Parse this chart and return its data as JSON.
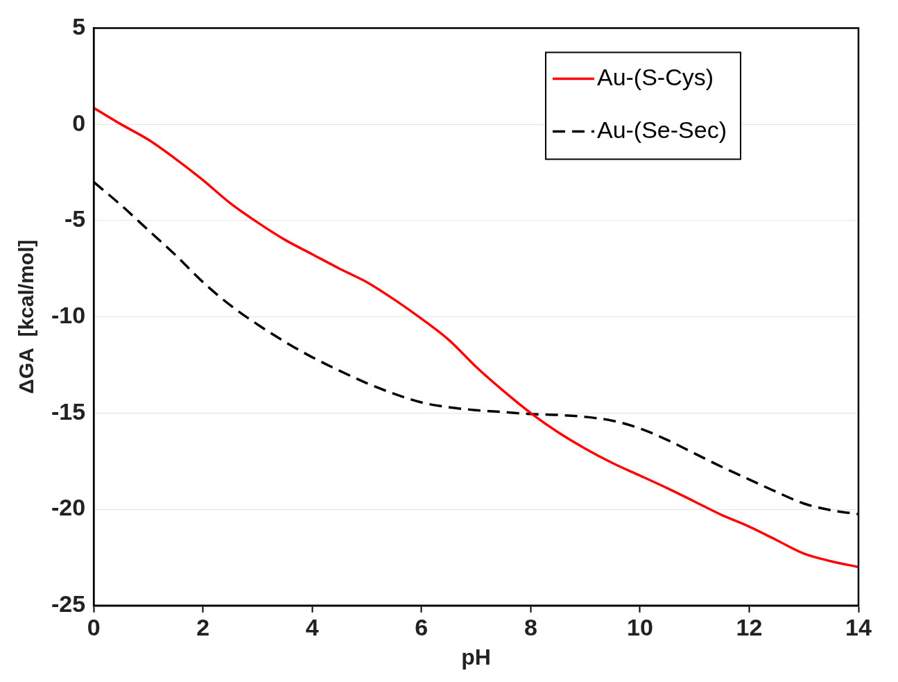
{
  "chart_data": {
    "type": "line",
    "xlabel": "pH",
    "ylabel": "ΔGA  [kcal/mol]",
    "x": [
      0,
      0.5,
      1,
      1.5,
      2,
      2.5,
      3,
      3.5,
      4,
      4.5,
      5,
      5.5,
      6,
      6.5,
      7,
      7.5,
      8,
      8.5,
      9,
      9.5,
      10,
      10.5,
      11,
      11.5,
      12,
      12.5,
      13,
      13.5,
      14
    ],
    "series": [
      {
        "name": "Au-(S-Cys)",
        "color": "#ff0000",
        "line_style": "solid",
        "values": [
          0.85,
          0,
          -0.8,
          -1.8,
          -2.9,
          -4.1,
          -5.1,
          -6.0,
          -6.75,
          -7.5,
          -8.2,
          -9.1,
          -10.1,
          -11.2,
          -12.6,
          -13.85,
          -15.0,
          -16.0,
          -16.85,
          -17.6,
          -18.25,
          -18.9,
          -19.6,
          -20.3,
          -20.9,
          -21.6,
          -22.3,
          -22.7,
          -23.0
        ]
      },
      {
        "name": "Au-(Se-Sec)",
        "color": "#000000",
        "line_style": "dashed",
        "values": [
          -3.0,
          -4.2,
          -5.5,
          -6.8,
          -8.2,
          -9.4,
          -10.4,
          -11.3,
          -12.1,
          -12.8,
          -13.45,
          -14.0,
          -14.45,
          -14.7,
          -14.85,
          -14.95,
          -15.05,
          -15.1,
          -15.2,
          -15.4,
          -15.8,
          -16.4,
          -17.1,
          -17.8,
          -18.45,
          -19.1,
          -19.7,
          -20.05,
          -20.25
        ]
      }
    ],
    "xlim": [
      0,
      14
    ],
    "xticks": [
      0,
      2,
      4,
      6,
      8,
      10,
      12,
      14
    ],
    "ylim": [
      -25,
      5
    ],
    "yticks": [
      -25,
      -20,
      -15,
      -10,
      -5,
      0,
      5
    ],
    "grid": "y",
    "legend": "top right",
    "marker": "none"
  }
}
